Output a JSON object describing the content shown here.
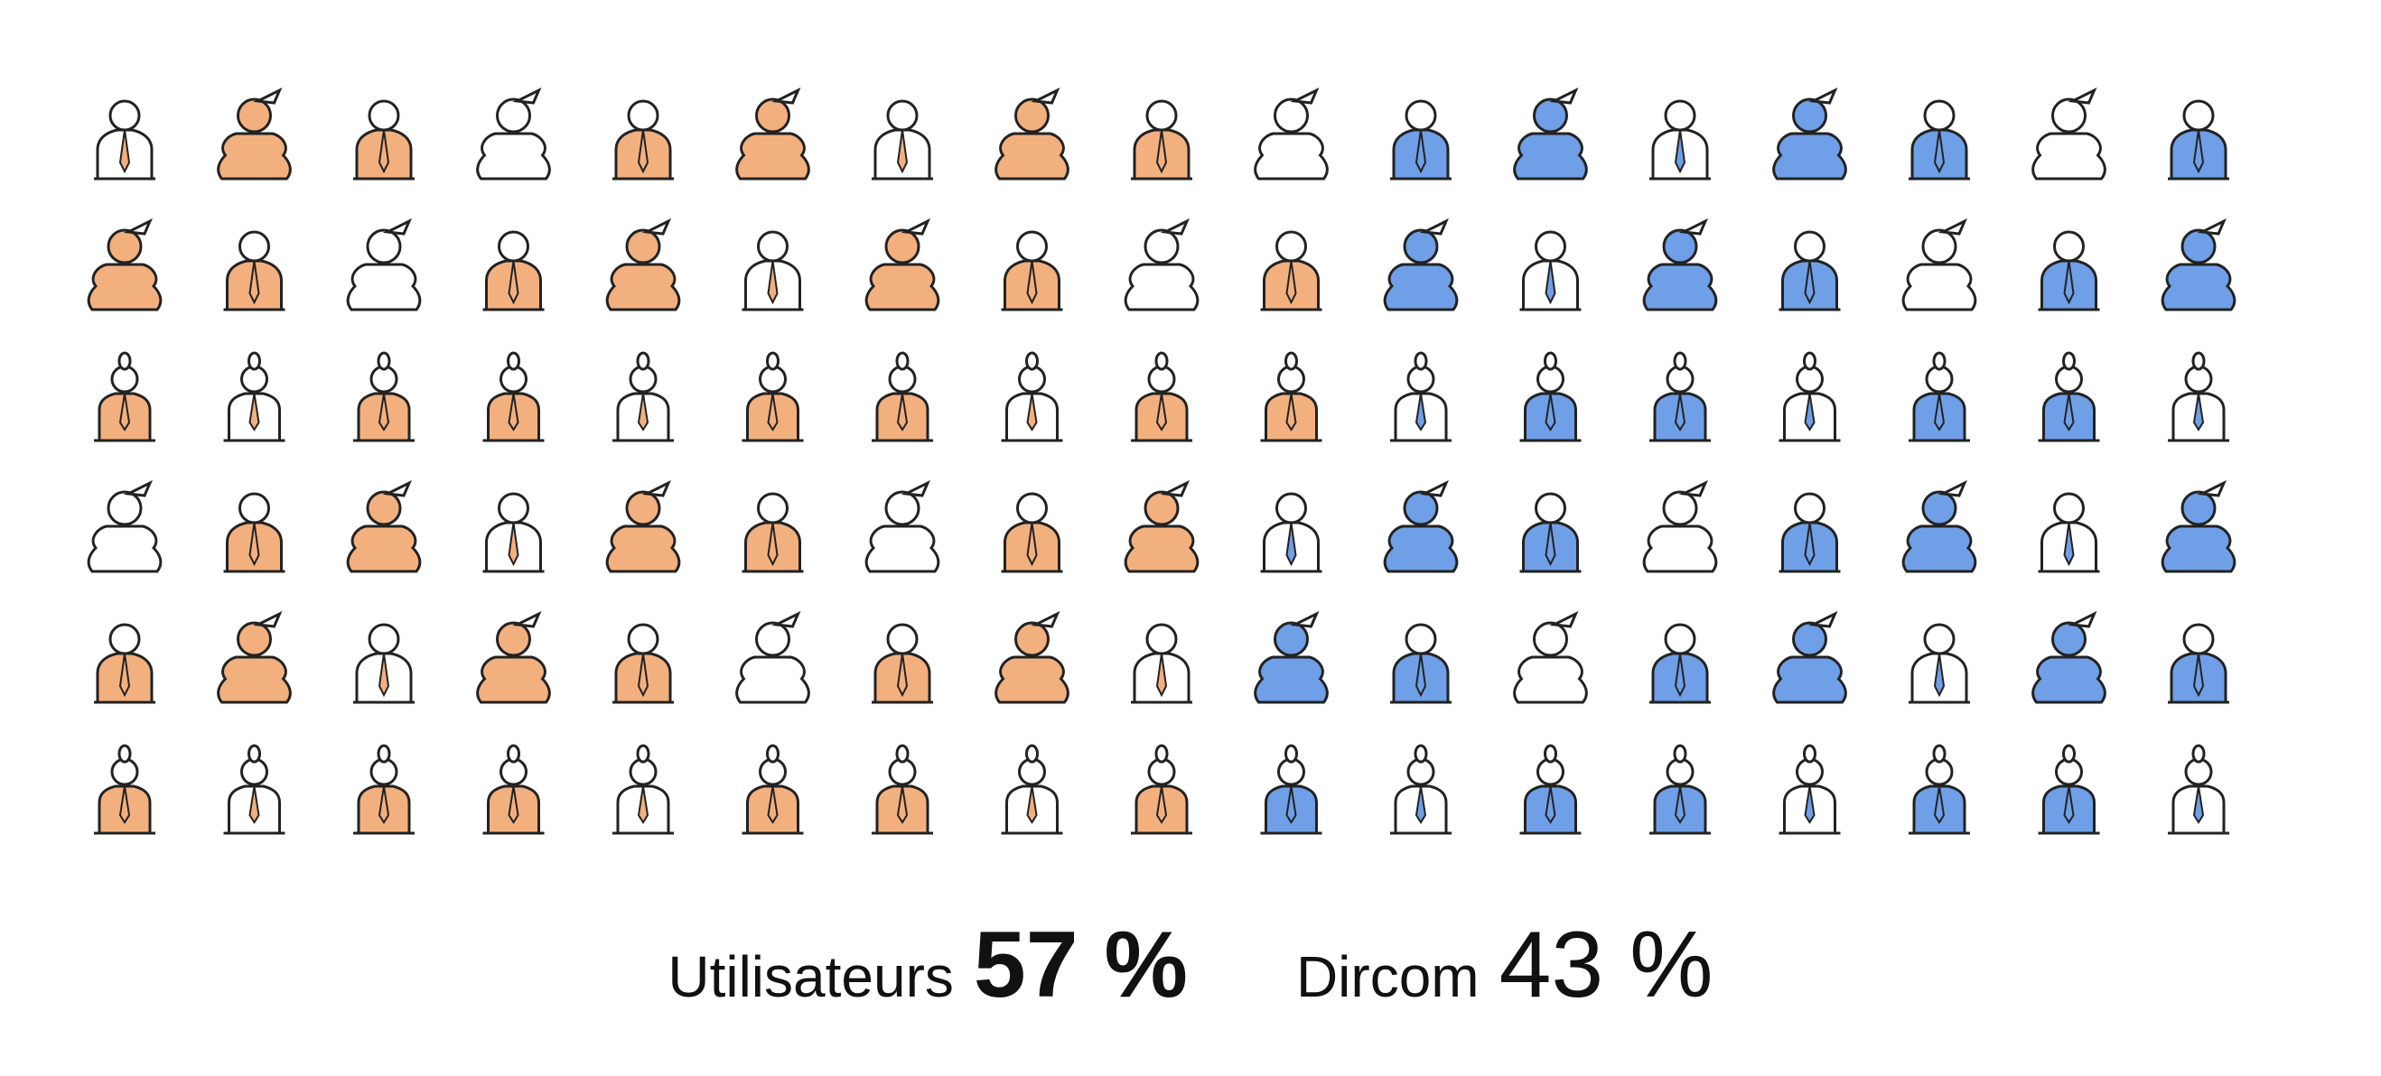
{
  "chart_data": {
    "type": "pictogram",
    "categories": [
      "Utilisateurs",
      "Dircom"
    ],
    "values": [
      57,
      43
    ],
    "value_labels": [
      "57 %",
      "43 %"
    ],
    "colors": [
      "#f3b07f",
      "#6f9fe6"
    ]
  }
}
